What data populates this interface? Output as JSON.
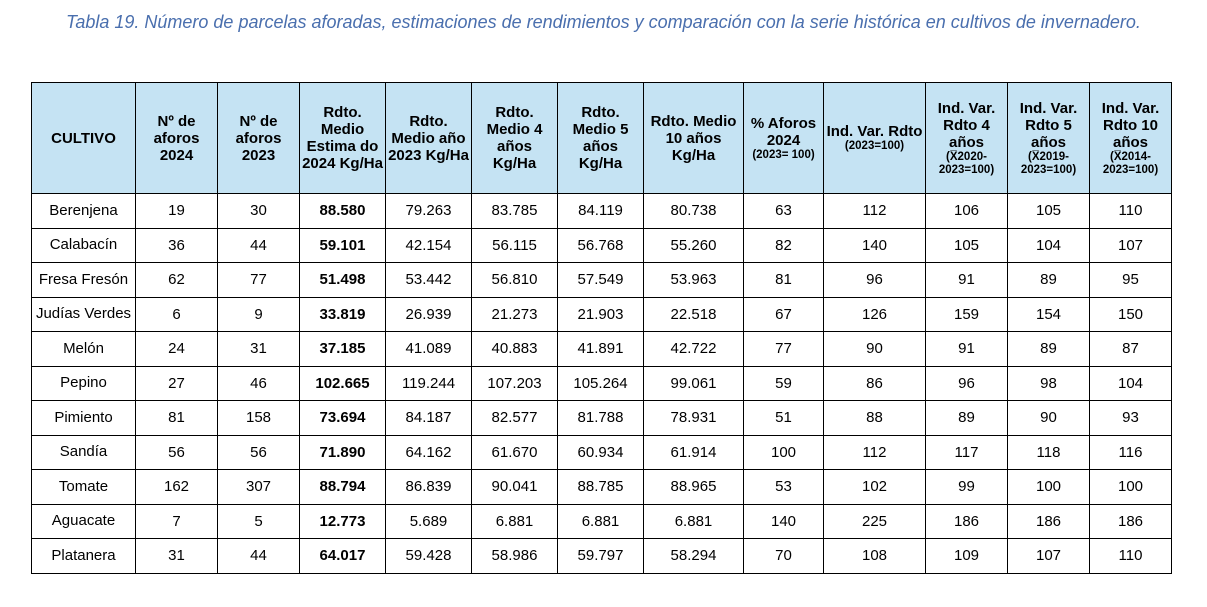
{
  "caption": "Tabla 19. Número de parcelas aforadas, estimaciones de rendimientos y comparación con la serie histórica en cultivos de invernadero.",
  "headers": [
    {
      "main": "CULTIVO",
      "sub": ""
    },
    {
      "main": "Nº de aforos 2024",
      "sub": ""
    },
    {
      "main": "Nº de aforos 2023",
      "sub": ""
    },
    {
      "main": "Rdto. Medio Estima do 2024 Kg/Ha",
      "sub": ""
    },
    {
      "main": "Rdto. Medio año 2023 Kg/Ha",
      "sub": ""
    },
    {
      "main": "Rdto. Medio 4 años Kg/Ha",
      "sub": ""
    },
    {
      "main": "Rdto. Medio 5 años Kg/Ha",
      "sub": ""
    },
    {
      "main": "Rdto. Medio 10 años Kg/Ha",
      "sub": ""
    },
    {
      "main": "% Aforos 2024",
      "sub": "(2023= 100)"
    },
    {
      "main": "Ind. Var. Rdto",
      "sub": "(2023=100)"
    },
    {
      "main": "Ind. Var. Rdto 4 años",
      "sub": "(X̅2020- 2023=100)"
    },
    {
      "main": "Ind. Var. Rdto 5 años",
      "sub": "(X̅2019- 2023=100)"
    },
    {
      "main": "Ind. Var. Rdto 10 años",
      "sub": "(X̅2014- 2023=100)"
    }
  ],
  "rows": [
    [
      "Berenjena",
      "19",
      "30",
      "88.580",
      "79.263",
      "83.785",
      "84.119",
      "80.738",
      "63",
      "112",
      "106",
      "105",
      "110"
    ],
    [
      "Calabacín",
      "36",
      "44",
      "59.101",
      "42.154",
      "56.115",
      "56.768",
      "55.260",
      "82",
      "140",
      "105",
      "104",
      "107"
    ],
    [
      "Fresa Fresón",
      "62",
      "77",
      "51.498",
      "53.442",
      "56.810",
      "57.549",
      "53.963",
      "81",
      "96",
      "91",
      "89",
      "95"
    ],
    [
      "Judías Verdes",
      "6",
      "9",
      "33.819",
      "26.939",
      "21.273",
      "21.903",
      "22.518",
      "67",
      "126",
      "159",
      "154",
      "150"
    ],
    [
      "Melón",
      "24",
      "31",
      "37.185",
      "41.089",
      "40.883",
      "41.891",
      "42.722",
      "77",
      "90",
      "91",
      "89",
      "87"
    ],
    [
      "Pepino",
      "27",
      "46",
      "102.665",
      "119.244",
      "107.203",
      "105.264",
      "99.061",
      "59",
      "86",
      "96",
      "98",
      "104"
    ],
    [
      "Pimiento",
      "81",
      "158",
      "73.694",
      "84.187",
      "82.577",
      "81.788",
      "78.931",
      "51",
      "88",
      "89",
      "90",
      "93"
    ],
    [
      "Sandía",
      "56",
      "56",
      "71.890",
      "64.162",
      "61.670",
      "60.934",
      "61.914",
      "100",
      "112",
      "117",
      "118",
      "116"
    ],
    [
      "Tomate",
      "162",
      "307",
      "88.794",
      "86.839",
      "90.041",
      "88.785",
      "88.965",
      "53",
      "102",
      "99",
      "100",
      "100"
    ],
    [
      "Aguacate",
      "7",
      "5",
      "12.773",
      "5.689",
      "6.881",
      "6.881",
      "6.881",
      "140",
      "225",
      "186",
      "186",
      "186"
    ],
    [
      "Platanera",
      "31",
      "44",
      "64.017",
      "59.428",
      "58.986",
      "59.797",
      "58.294",
      "70",
      "108",
      "109",
      "107",
      "110"
    ]
  ],
  "colors": {
    "caption": "#4a6fae",
    "header_bg": "#c5e3f3",
    "border": "#000000"
  }
}
